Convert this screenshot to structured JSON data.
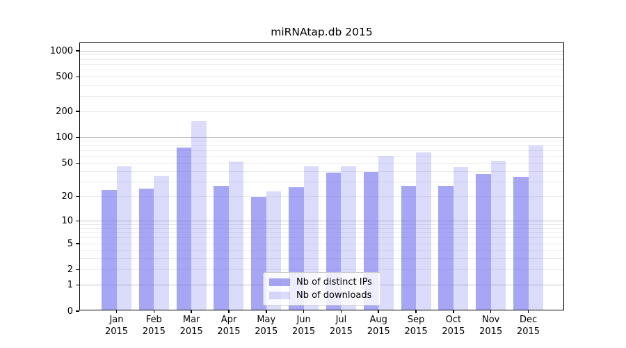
{
  "chart": {
    "title": "miRNAtap.db 2015"
  },
  "chart_data": {
    "type": "bar",
    "title": "miRNAtap.db 2015",
    "categories": [
      "Jan",
      "Feb",
      "Mar",
      "Apr",
      "May",
      "Jun",
      "Jul",
      "Aug",
      "Sep",
      "Oct",
      "Nov",
      "Dec"
    ],
    "category_year": "2015",
    "series": [
      {
        "name": "Nb of distinct IPs",
        "color": "rgba(90, 90, 235, 0.54)",
        "values": [
          23,
          24,
          73,
          26,
          19,
          25,
          37,
          38,
          26,
          26,
          36,
          33
        ]
      },
      {
        "name": "Nb of downloads",
        "color": "rgba(90, 90, 235, 0.22)",
        "values": [
          44,
          34,
          150,
          50,
          22,
          44,
          44,
          58,
          64,
          43,
          51,
          77
        ]
      }
    ],
    "yscale": "log1p",
    "ylim": [
      0,
      1230
    ],
    "y_ticks": [
      0,
      1,
      2,
      5,
      10,
      20,
      50,
      100,
      200,
      500,
      1000
    ],
    "major_gridlines": [
      1,
      10,
      100,
      1000
    ],
    "minor_gridlines": [
      2,
      3,
      4,
      5,
      6,
      7,
      8,
      9,
      20,
      30,
      40,
      50,
      60,
      70,
      80,
      90,
      200,
      300,
      400,
      500,
      600,
      700,
      800,
      900
    ],
    "grid": true,
    "legend_position": "lower center",
    "xlabel": "",
    "ylabel": ""
  }
}
